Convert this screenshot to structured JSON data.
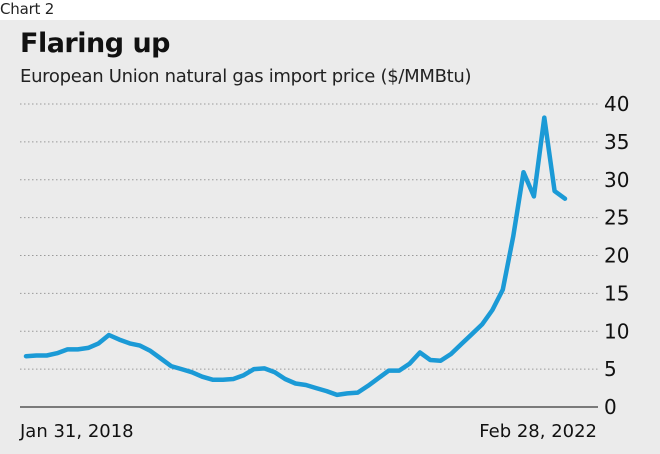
{
  "header": {
    "chart_number": "Chart 2"
  },
  "chart_data": {
    "type": "line",
    "title": "Flaring up",
    "subtitle": "European Union natural gas import price ($/MMBtu)",
    "xlabel": "",
    "ylabel": "",
    "ylim": [
      0,
      40
    ],
    "yticks": [
      0,
      5,
      10,
      15,
      20,
      25,
      30,
      35,
      40
    ],
    "x_start_label": "Jan 31, 2018",
    "x_end_label": "Feb 28, 2022",
    "grid": true,
    "line_color": "#1b9ad6",
    "series": [
      {
        "values": [
          6.7,
          6.8,
          6.8,
          7.1,
          7.6,
          7.6,
          7.8,
          8.4,
          9.5,
          8.9,
          8.4,
          8.1,
          7.4,
          6.4,
          5.4,
          5.0,
          4.6,
          4.0,
          3.6,
          3.6,
          3.7,
          4.2,
          5.0,
          5.1,
          4.6,
          3.7,
          3.1,
          2.9,
          2.5,
          2.1,
          1.6,
          1.8,
          1.9,
          2.8,
          3.8,
          4.8,
          4.8,
          5.7,
          7.2,
          6.2,
          6.1,
          7.0,
          8.3,
          9.6,
          10.9,
          12.8,
          15.5,
          22.5,
          31.0,
          27.8,
          38.2,
          28.5,
          27.5
        ]
      }
    ]
  }
}
